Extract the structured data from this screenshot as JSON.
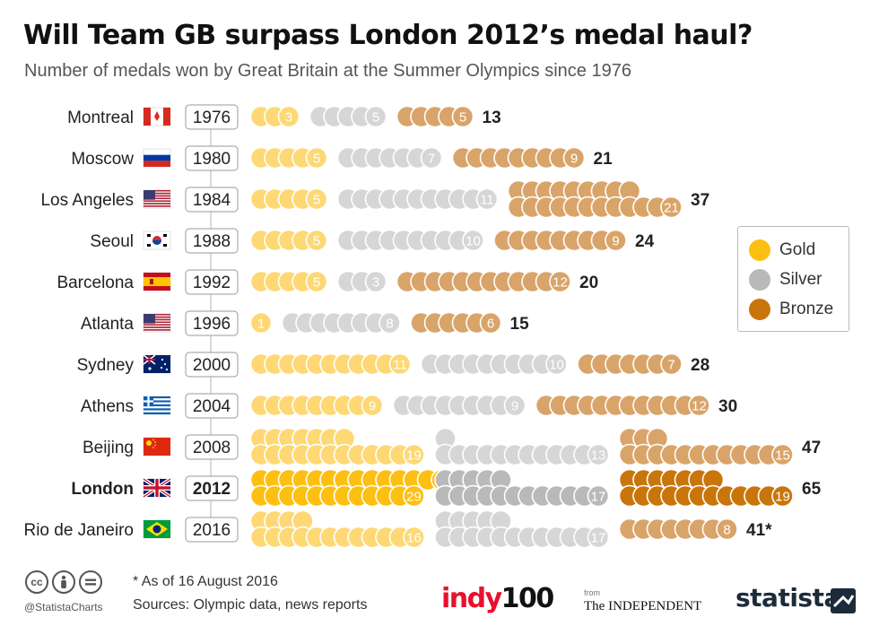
{
  "title": "Will Team GB surpass London 2012’s medal haul?",
  "subtitle": "Number of medals won by Great Britain at the Summer Olympics since 1976",
  "legend": [
    {
      "label": "Gold",
      "color": "#fdbf12"
    },
    {
      "label": "Silver",
      "color": "#b9b9b9"
    },
    {
      "label": "Bronze",
      "color": "#c9750a"
    }
  ],
  "footnote": "* As of 16 August 2016",
  "sources": "Sources: Olympic data, news reports",
  "handle": "@StatistaCharts",
  "logos": {
    "indy_a": "indy",
    "indy_b": "100",
    "from": "from",
    "independent": "The INDEPENDENT",
    "statista": "statista"
  },
  "colors": {
    "gold": "#fdbf12",
    "silver": "#b9b9b9",
    "bronze": "#c9750a",
    "gold_light": "#fdd874",
    "silver_light": "#d6d6d6",
    "bronze_light": "#d9a46a"
  },
  "chart_data": {
    "type": "table",
    "title": "Will Team GB surpass London 2012’s medal haul?",
    "subtitle": "Number of medals won by Great Britain at the Summer Olympics since 1976",
    "series": [
      "Gold",
      "Silver",
      "Bronze"
    ],
    "rows": [
      {
        "city": "Montreal",
        "year": "1976",
        "flag": "canada",
        "gold": 3,
        "silver": 5,
        "bronze": 5,
        "total": "13",
        "highlight": false
      },
      {
        "city": "Moscow",
        "year": "1980",
        "flag": "russia",
        "gold": 5,
        "silver": 7,
        "bronze": 9,
        "total": "21",
        "highlight": false
      },
      {
        "city": "Los Angeles",
        "year": "1984",
        "flag": "usa",
        "gold": 5,
        "silver": 11,
        "bronze": 21,
        "total": "37",
        "highlight": false
      },
      {
        "city": "Seoul",
        "year": "1988",
        "flag": "korea",
        "gold": 5,
        "silver": 10,
        "bronze": 9,
        "total": "24",
        "highlight": false
      },
      {
        "city": "Barcelona",
        "year": "1992",
        "flag": "spain",
        "gold": 5,
        "silver": 3,
        "bronze": 12,
        "total": "20",
        "highlight": false
      },
      {
        "city": "Atlanta",
        "year": "1996",
        "flag": "usa",
        "gold": 1,
        "silver": 8,
        "bronze": 6,
        "total": "15",
        "highlight": false
      },
      {
        "city": "Sydney",
        "year": "2000",
        "flag": "australia",
        "gold": 11,
        "silver": 10,
        "bronze": 7,
        "total": "28",
        "highlight": false
      },
      {
        "city": "Athens",
        "year": "2004",
        "flag": "greece",
        "gold": 9,
        "silver": 9,
        "bronze": 12,
        "total": "30",
        "highlight": false
      },
      {
        "city": "Beijing",
        "year": "2008",
        "flag": "china",
        "gold": 19,
        "silver": 13,
        "bronze": 15,
        "total": "47",
        "highlight": false
      },
      {
        "city": "London",
        "year": "2012",
        "flag": "uk",
        "gold": 29,
        "silver": 17,
        "bronze": 19,
        "total": "65",
        "highlight": true
      },
      {
        "city": "Rio de Janeiro",
        "year": "2016",
        "flag": "brazil",
        "gold": 16,
        "silver": 17,
        "bronze": 8,
        "total": "41*",
        "highlight": false
      }
    ]
  }
}
